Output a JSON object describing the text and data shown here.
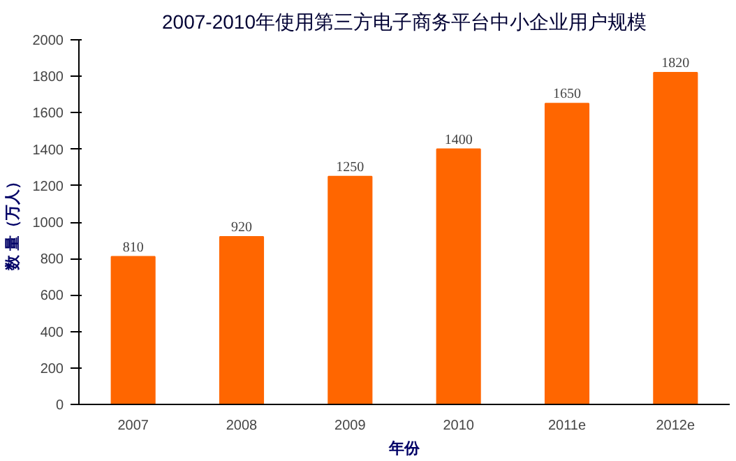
{
  "chart_data": {
    "type": "bar",
    "title": "2007-2010年使用第三方电子商务平台中小企业用户规模",
    "xlabel": "年份",
    "ylabel": "数 量（万人）",
    "categories": [
      "2007",
      "2008",
      "2009",
      "2010",
      "2011e",
      "2012e"
    ],
    "values": [
      810,
      920,
      1250,
      1400,
      1650,
      1820
    ],
    "color": "#ff6600",
    "ylim": [
      0,
      2000
    ],
    "yticks": [
      0,
      200,
      400,
      600,
      800,
      1000,
      1200,
      1400,
      1600,
      1800,
      2000
    ],
    "grid": false,
    "data_labels": true
  }
}
